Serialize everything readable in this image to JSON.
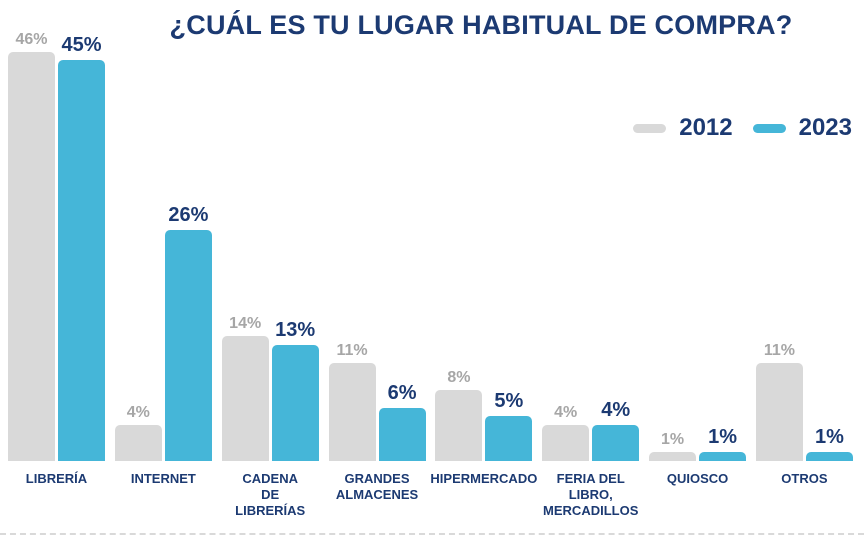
{
  "page": {
    "background": "#FFFFFF"
  },
  "chart_data": {
    "type": "bar",
    "title": "¿CUÁL ES TU LUGAR HABITUAL DE COMPRA?",
    "title_color": "#1C3A72",
    "categories": [
      "LIBRERÍA",
      "INTERNET",
      "CADENA\nDE\nLIBRERÍAS",
      "GRANDES\nALMACENES",
      "HIPERMERCADO",
      "FERIA DEL\nLIBRO,\nMERCADILLOS",
      "QUIOSCO",
      "OTROS"
    ],
    "series": [
      {
        "name": "2012",
        "color": "#D9D9D9",
        "label_color": "#A6A6A6",
        "values": [
          46,
          4,
          14,
          11,
          8,
          4,
          1,
          11
        ]
      },
      {
        "name": "2023",
        "color": "#45B6D8",
        "label_color": "#1C3A72",
        "values": [
          45,
          26,
          13,
          6,
          5,
          4,
          1,
          1
        ]
      }
    ],
    "value_suffix": "%",
    "ylim": [
      0,
      50
    ],
    "grid": false,
    "legend_position": "top-right",
    "category_label_color": "#1C3A72"
  }
}
